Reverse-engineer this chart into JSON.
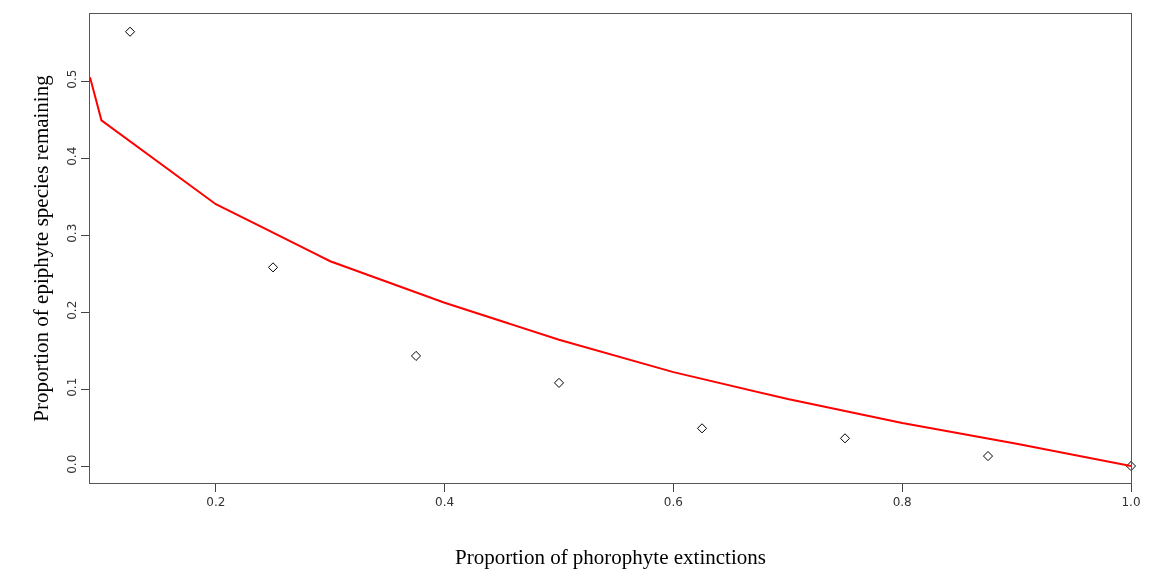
{
  "chart_data": {
    "type": "scatter",
    "xlabel": "Proportion of phorophyte extinctions",
    "ylabel": "Proportion of epiphyte species remaining",
    "series": [
      {
        "color": "#000000",
        "marker": "diamond",
        "x": [
          0.125,
          0.25,
          0.375,
          0.5,
          0.625,
          0.75,
          0.875,
          1.0
        ],
        "values": [
          0.564,
          0.258,
          0.143,
          0.108,
          0.049,
          0.036,
          0.013,
          0.0
        ]
      },
      {
        "type": "line",
        "color": "#ff0000",
        "x": [
          0.09,
          0.1,
          0.2,
          0.3,
          0.4,
          0.5,
          0.6,
          0.7,
          0.8,
          0.9,
          1.0
        ],
        "values": [
          0.505,
          0.449,
          0.34,
          0.266,
          0.212,
          0.164,
          0.122,
          0.087,
          0.056,
          0.029,
          0.0
        ]
      }
    ],
    "xlim": [
      0.09,
      1.0
    ],
    "xticks": [
      {
        "value": 0.2,
        "label": "0.2"
      },
      {
        "value": 0.4,
        "label": "0.4"
      },
      {
        "value": 0.6,
        "label": "0.6"
      },
      {
        "value": 0.8,
        "label": "0.8"
      },
      {
        "value": 1.0,
        "label": "1.0"
      }
    ],
    "ylim": [
      -0.022,
      0.587
    ],
    "yticks": [
      {
        "value": 0.0,
        "label": "0.0"
      },
      {
        "value": 0.1,
        "label": "0.1"
      },
      {
        "value": 0.2,
        "label": "0.2"
      },
      {
        "value": 0.3,
        "label": "0.3"
      },
      {
        "value": 0.4,
        "label": "0.4"
      },
      {
        "value": 0.5,
        "label": "0.5"
      }
    ]
  }
}
